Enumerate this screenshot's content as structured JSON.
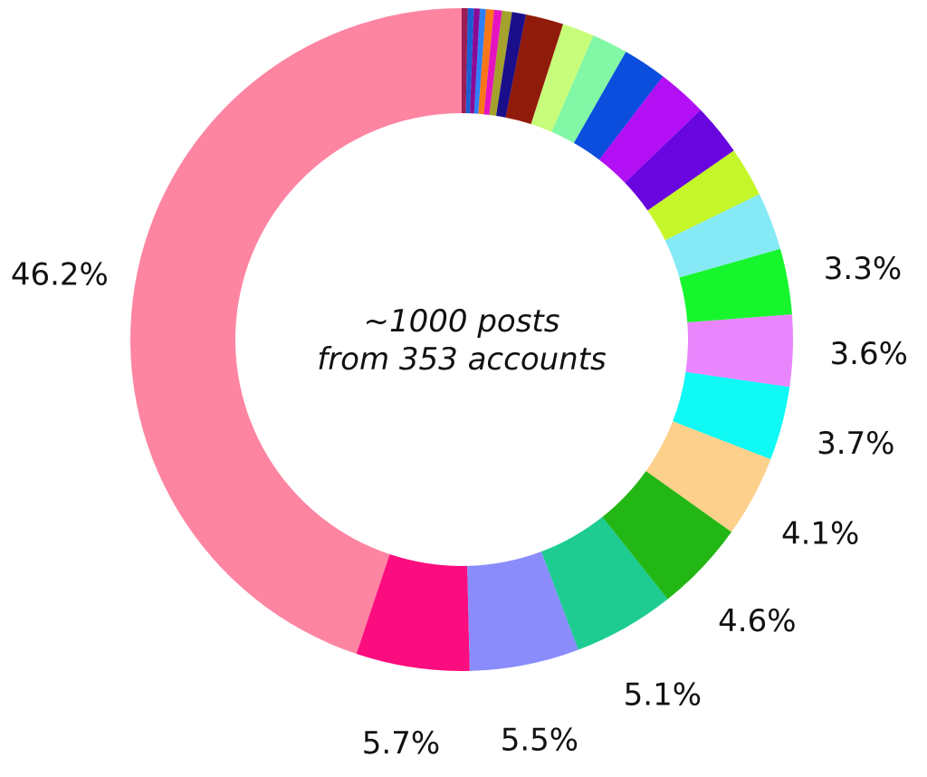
{
  "chart_data": {
    "type": "pie",
    "variant": "donut",
    "center_label": [
      "~1000 posts",
      "from 353 accounts"
    ],
    "start": "top",
    "direction": "counterclockwise",
    "values": [
      46.2,
      5.7,
      5.5,
      5.1,
      4.6,
      4.1,
      3.7,
      3.6,
      3.3,
      2.9,
      2.5,
      2.6,
      2.5,
      2.2,
      1.8,
      1.6,
      1.9,
      0.7,
      0.5,
      0.4,
      0.4,
      0.3,
      0.3,
      0.3,
      0.3
    ],
    "labels": [
      "46.2%",
      "5.7%",
      "5.5%",
      "5.1%",
      "4.6%",
      "4.1%",
      "3.7%",
      "3.6%",
      "3.3%",
      "",
      "",
      "",
      "",
      "",
      "",
      "",
      "",
      "",
      "",
      "",
      "",
      "",
      "",
      "",
      ""
    ],
    "colors": [
      "#fd85a1",
      "#fc0d7f",
      "#8a8cfc",
      "#1ecc92",
      "#23b715",
      "#fdd08b",
      "#0ff9f5",
      "#ea86fd",
      "#17f62d",
      "#86e9f6",
      "#c5f629",
      "#6905de",
      "#b20ff4",
      "#0b4ddd",
      "#82f7a6",
      "#c8fd7b",
      "#911b0b",
      "#1a0e8b",
      "#a4a12d",
      "#e514c0",
      "#f97718",
      "#2e7ffa",
      "#8a0a96",
      "#1b5dd5",
      "#9c1c53"
    ]
  }
}
